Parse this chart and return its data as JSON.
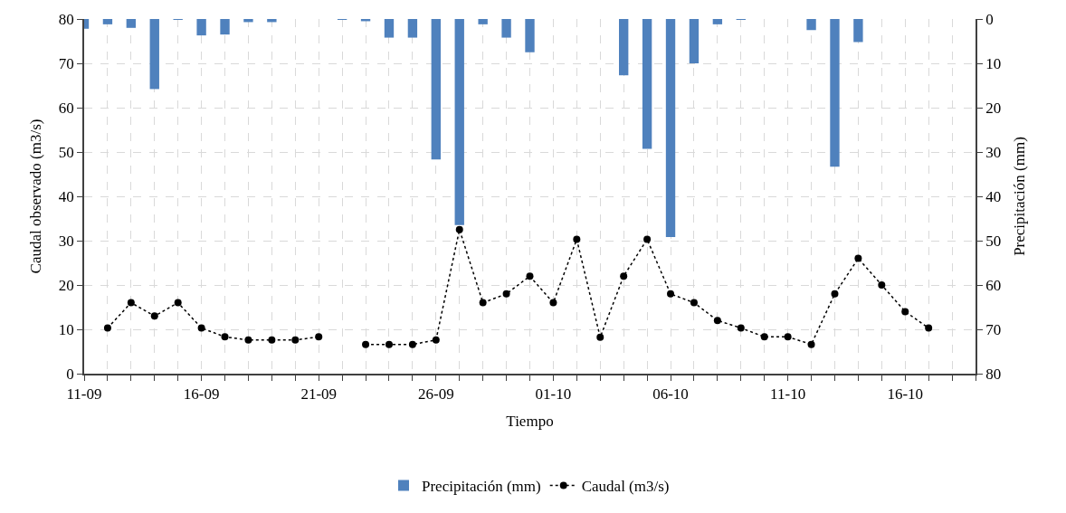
{
  "chart_data": {
    "type": "bar",
    "xlabel": "Tiempo",
    "ylabel": "Caudal observado (m3/s)",
    "y2label": "Precipitación (mm)",
    "xlim": [
      "--09-11",
      "--10-19"
    ],
    "xticks": [
      {
        "value": "--09-11",
        "label": "11-09"
      },
      {
        "value": "--09-12",
        "label": null
      },
      {
        "value": "--09-13",
        "label": null
      },
      {
        "value": "--09-14",
        "label": null
      },
      {
        "value": "--09-15",
        "label": null
      },
      {
        "value": "--09-16",
        "label": "16-09"
      },
      {
        "value": "--09-17",
        "label": null
      },
      {
        "value": "--09-18",
        "label": null
      },
      {
        "value": "--09-19",
        "label": null
      },
      {
        "value": "--09-20",
        "label": null
      },
      {
        "value": "--09-21",
        "label": "21-09"
      },
      {
        "value": "--09-22",
        "label": null
      },
      {
        "value": "--09-23",
        "label": null
      },
      {
        "value": "--09-24",
        "label": null
      },
      {
        "value": "--09-25",
        "label": null
      },
      {
        "value": "--09-26",
        "label": "26-09"
      },
      {
        "value": "--09-27",
        "label": null
      },
      {
        "value": "--09-28",
        "label": null
      },
      {
        "value": "--09-29",
        "label": null
      },
      {
        "value": "--09-30",
        "label": null
      },
      {
        "value": "--10-01",
        "label": "01-10"
      },
      {
        "value": "--10-02",
        "label": null
      },
      {
        "value": "--10-03",
        "label": null
      },
      {
        "value": "--10-04",
        "label": null
      },
      {
        "value": "--10-05",
        "label": null
      },
      {
        "value": "--10-06",
        "label": "06-10"
      },
      {
        "value": "--10-07",
        "label": null
      },
      {
        "value": "--10-08",
        "label": null
      },
      {
        "value": "--10-09",
        "label": null
      },
      {
        "value": "--10-10",
        "label": null
      },
      {
        "value": "--10-11",
        "label": "11-10"
      },
      {
        "value": "--10-12",
        "label": null
      },
      {
        "value": "--10-13",
        "label": null
      },
      {
        "value": "--10-14",
        "label": null
      },
      {
        "value": "--10-15",
        "label": null
      },
      {
        "value": "--10-16",
        "label": "16-10"
      },
      {
        "value": "--10-17",
        "label": null
      },
      {
        "value": "--10-18",
        "label": null
      },
      {
        "value": "--10-19",
        "label": null
      }
    ],
    "ylim": [
      0,
      80
    ],
    "yticks": [
      0,
      10,
      20,
      30,
      40,
      50,
      60,
      70,
      80
    ],
    "y2lim": [
      80,
      0
    ],
    "y2ticks": [
      0,
      10,
      20,
      30,
      40,
      50,
      60,
      70,
      80
    ],
    "grid": true,
    "legend": "bottom",
    "series": [
      {
        "name": "Precipitación (mm)",
        "axis": "y2",
        "color": "#4f81bd",
        "x": [
          "--09-11",
          "--09-12",
          "--09-13",
          "--09-14",
          "--09-15",
          "--09-16",
          "--09-17",
          "--09-18",
          "--09-19",
          "--09-22",
          "--09-23",
          "--09-24",
          "--09-25",
          "--09-26",
          "--09-27",
          "--09-28",
          "--09-29",
          "--09-30",
          "--10-04",
          "--10-05",
          "--10-06",
          "--10-07",
          "--10-08",
          "--10-09",
          "--10-12",
          "--10-13",
          "--10-14"
        ],
        "values": [
          2.2,
          1.2,
          2.0,
          15.8,
          0.2,
          3.7,
          3.5,
          0.7,
          0.7,
          0.2,
          0.5,
          4.2,
          4.2,
          31.7,
          46.5,
          1.2,
          4.2,
          7.5,
          12.7,
          29.3,
          49.2,
          10.0,
          1.2,
          0.2,
          2.5,
          33.3,
          5.2
        ]
      },
      {
        "name": "Caudal (m3/s)",
        "type": "line",
        "axis": "y",
        "color": "#000000",
        "marker": "circle",
        "line_style": "dotted",
        "x": [
          "--09-12",
          "--09-13",
          "--09-14",
          "--09-15",
          "--09-16",
          "--09-17",
          "--09-18",
          "--09-19",
          "--09-20",
          "--09-21",
          "--09-22",
          "--09-23",
          "--09-24",
          "--09-25",
          "--09-26",
          "--09-27",
          "--09-28",
          "--09-29",
          "--09-30",
          "--10-01",
          "--10-02",
          "--10-03",
          "--10-04",
          "--10-05",
          "--10-06",
          "--10-07",
          "--10-08",
          "--10-09",
          "--10-10",
          "--10-11",
          "--10-12",
          "--10-13",
          "--10-14",
          "--10-15",
          "--10-16",
          "--10-17"
        ],
        "values": [
          10.3,
          16,
          13,
          16,
          10.3,
          8.3,
          7.6,
          7.6,
          7.6,
          8.3,
          null,
          6.6,
          6.6,
          6.6,
          7.6,
          32.5,
          16,
          18,
          22,
          16,
          30.3,
          8.2,
          22,
          30.3,
          18,
          16,
          12,
          10.3,
          8.3,
          8.3,
          6.6,
          18,
          26,
          20,
          14,
          10.3
        ]
      }
    ]
  }
}
